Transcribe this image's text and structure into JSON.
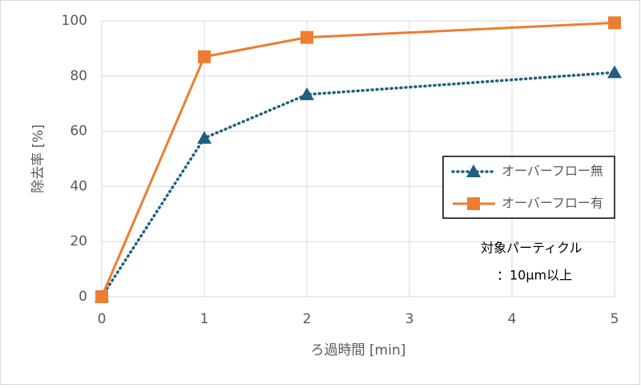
{
  "chart_data": {
    "type": "line",
    "x_label": "ろ過時間 [min]",
    "y_label": "除去率 [%]",
    "x": [
      0,
      1,
      2,
      5
    ],
    "series": [
      {
        "name": "オーバーフロー無",
        "color": "#1f5f7f",
        "line_style": "dotted",
        "marker": "triangle",
        "values": [
          0,
          57.5,
          73.3,
          81.3
        ]
      },
      {
        "name": "オーバーフロー有",
        "color": "#ed7d31",
        "line_style": "solid",
        "marker": "square",
        "values": [
          0,
          87,
          94,
          99.3
        ]
      }
    ],
    "xlim": [
      0,
      5
    ],
    "xticks": [
      0,
      1,
      2,
      3,
      4,
      5
    ],
    "ylim": [
      0,
      100
    ],
    "yticks": [
      0,
      20,
      40,
      60,
      80,
      100
    ],
    "grid": true,
    "legend_position": "right",
    "annotations": [
      "対象パーティクル",
      "：10μm以上"
    ]
  }
}
